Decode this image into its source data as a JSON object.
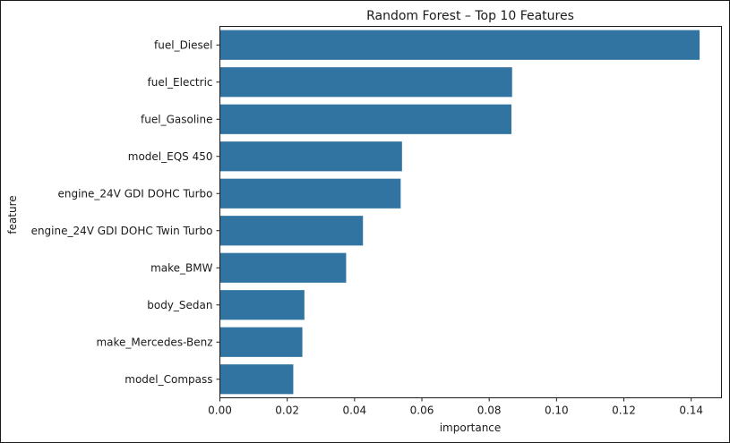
{
  "chart_data": {
    "type": "bar",
    "orientation": "horizontal",
    "title": "Random Forest – Top 10 Features",
    "xlabel": "importance",
    "ylabel": "feature",
    "categories": [
      "fuel_Diesel",
      "fuel_Electric",
      "fuel_Gasoline",
      "model_EQS 450",
      "engine_24V GDI DOHC Turbo",
      "engine_24V GDI DOHC Twin Turbo",
      "make_BMW",
      "body_Sedan",
      "make_Mercedes-Benz",
      "model_Compass"
    ],
    "values": [
      0.1425,
      0.0868,
      0.0866,
      0.0541,
      0.0537,
      0.0425,
      0.0375,
      0.0251,
      0.0245,
      0.0218
    ],
    "xlim": [
      0,
      0.149
    ],
    "xticks": [
      0.0,
      0.02,
      0.04,
      0.06,
      0.08,
      0.1,
      0.12,
      0.14
    ],
    "xtick_labels": [
      "0.00",
      "0.02",
      "0.04",
      "0.06",
      "0.08",
      "0.10",
      "0.12",
      "0.14"
    ],
    "grid": false,
    "bar_color": "#3274a1"
  }
}
